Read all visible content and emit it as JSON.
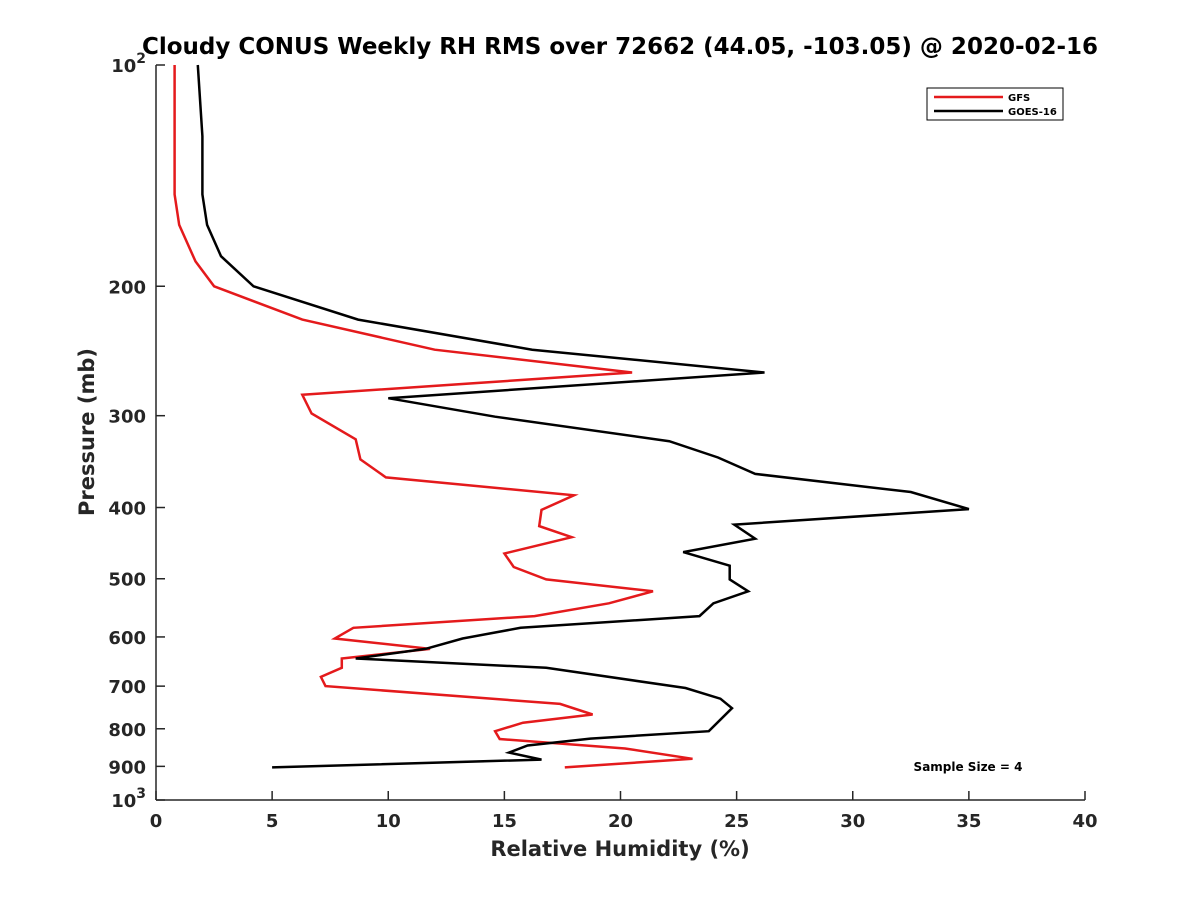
{
  "chart_data": {
    "type": "line",
    "title": "Cloudy CONUS Weekly RH RMS over 72662 (44.05, -103.05) @ 2020-02-16",
    "xlabel": "Relative Humidity (%)",
    "ylabel": "Pressure (mb)",
    "xlim": [
      0,
      40
    ],
    "ylim": [
      100,
      1000
    ],
    "y_scale": "log",
    "y_reversed": true,
    "x_ticks": [
      "0",
      "5",
      "10",
      "15",
      "20",
      "25",
      "30",
      "35",
      "40"
    ],
    "y_ticks": [
      {
        "value": 100,
        "base": "10",
        "exp": "2"
      },
      {
        "value": 200,
        "label": "200"
      },
      {
        "value": 300,
        "label": "300"
      },
      {
        "value": 400,
        "label": "400"
      },
      {
        "value": 500,
        "label": "500"
      },
      {
        "value": 600,
        "label": "600"
      },
      {
        "value": 700,
        "label": "700"
      },
      {
        "value": 800,
        "label": "800"
      },
      {
        "value": 900,
        "label": "900"
      },
      {
        "value": 1000,
        "base": "10",
        "exp": "3"
      }
    ],
    "legend_position": "top-right",
    "annotation": "Sample Size = 4",
    "series": [
      {
        "name": "GFS",
        "color": "#e41a1c",
        "points": [
          [
            0.8,
            100
          ],
          [
            0.8,
            150
          ],
          [
            1.0,
            165
          ],
          [
            1.7,
            185
          ],
          [
            2.5,
            200
          ],
          [
            6.3,
            222
          ],
          [
            12.0,
            244
          ],
          [
            20.5,
            262
          ],
          [
            6.3,
            281
          ],
          [
            6.7,
            298
          ],
          [
            8.6,
            323
          ],
          [
            8.8,
            344
          ],
          [
            9.9,
            364
          ],
          [
            18.0,
            385
          ],
          [
            16.6,
            403
          ],
          [
            16.5,
            424
          ],
          [
            17.9,
            439
          ],
          [
            15.0,
            462
          ],
          [
            15.4,
            482
          ],
          [
            16.8,
            501
          ],
          [
            21.4,
            520
          ],
          [
            19.5,
            540
          ],
          [
            16.3,
            562
          ],
          [
            8.5,
            583
          ],
          [
            7.7,
            603
          ],
          [
            11.8,
            623
          ],
          [
            8.0,
            642
          ],
          [
            8.0,
            661
          ],
          [
            7.1,
            680
          ],
          [
            7.3,
            700
          ],
          [
            17.4,
            740
          ],
          [
            18.8,
            765
          ],
          [
            15.8,
            785
          ],
          [
            14.6,
            806
          ],
          [
            14.8,
            826
          ],
          [
            20.2,
            851
          ],
          [
            23.1,
            879
          ],
          [
            17.6,
            903
          ]
        ]
      },
      {
        "name": "GOES-16",
        "color": "#000000",
        "points": [
          [
            1.8,
            100
          ],
          [
            2.0,
            125
          ],
          [
            2.0,
            150
          ],
          [
            2.2,
            165
          ],
          [
            2.8,
            182
          ],
          [
            4.2,
            200
          ],
          [
            8.7,
            222
          ],
          [
            16.2,
            244
          ],
          [
            26.2,
            262
          ],
          [
            10.0,
            284
          ],
          [
            14.6,
            301
          ],
          [
            22.1,
            325
          ],
          [
            24.2,
            342
          ],
          [
            25.8,
            360
          ],
          [
            32.5,
            381
          ],
          [
            35.0,
            402
          ],
          [
            24.9,
            422
          ],
          [
            25.8,
            441
          ],
          [
            22.7,
            460
          ],
          [
            24.7,
            480
          ],
          [
            24.7,
            501
          ],
          [
            25.5,
            520
          ],
          [
            24.0,
            540
          ],
          [
            23.4,
            562
          ],
          [
            15.7,
            583
          ],
          [
            13.2,
            603
          ],
          [
            11.6,
            623
          ],
          [
            8.6,
            642
          ],
          [
            16.8,
            661
          ],
          [
            22.8,
            704
          ],
          [
            24.3,
            728
          ],
          [
            24.8,
            750
          ],
          [
            23.8,
            806
          ],
          [
            18.7,
            825
          ],
          [
            16.0,
            843
          ],
          [
            15.2,
            862
          ],
          [
            16.6,
            881
          ],
          [
            5.0,
            903
          ]
        ]
      }
    ]
  }
}
